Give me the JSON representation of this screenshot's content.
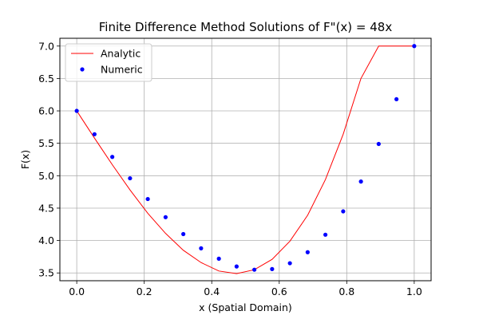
{
  "chart_data": {
    "type": "line",
    "title": "Finite Difference Method Solutions of F\"(x) = 48x",
    "xlabel": "x (Spatial Domain)",
    "ylabel": "F(x)",
    "xlim": [
      -0.05,
      1.05
    ],
    "ylim": [
      3.38,
      7.12
    ],
    "x_ticks": [
      0.0,
      0.2,
      0.4,
      0.6,
      0.8,
      1.0
    ],
    "x_tick_labels": [
      "0.0",
      "0.2",
      "0.4",
      "0.6",
      "0.8",
      "1.0"
    ],
    "y_ticks": [
      3.5,
      4.0,
      4.5,
      5.0,
      5.5,
      6.0,
      6.5,
      7.0
    ],
    "y_tick_labels": [
      "3.5",
      "4.0",
      "4.5",
      "5.0",
      "5.5",
      "6.0",
      "6.5",
      "7.0"
    ],
    "grid": true,
    "legend_position": "top-left",
    "series": [
      {
        "name": "Analytic",
        "style": "line",
        "color": "#ff0000",
        "x": [
          0.0,
          0.0526,
          0.1053,
          0.1579,
          0.2105,
          0.2632,
          0.3158,
          0.3684,
          0.4211,
          0.4737,
          0.5263,
          0.5789,
          0.6316,
          0.6842,
          0.7368,
          0.7895,
          0.8421,
          0.8947,
          0.9474,
          1.0
        ],
        "y": [
          6.0,
          5.58,
          5.17,
          4.78,
          4.42,
          4.11,
          3.85,
          3.66,
          3.53,
          3.49,
          3.55,
          3.71,
          3.99,
          4.39,
          4.94,
          5.64,
          6.5,
          7.0,
          7.0,
          7.0
        ]
      },
      {
        "name": "Numeric",
        "style": "scatter",
        "color": "#0000ff",
        "x": [
          0.0,
          0.0526,
          0.1053,
          0.1579,
          0.2105,
          0.2632,
          0.3158,
          0.3684,
          0.4211,
          0.4737,
          0.5263,
          0.5789,
          0.6316,
          0.6842,
          0.7368,
          0.7895,
          0.8421,
          0.8947,
          0.9474,
          1.0
        ],
        "y": [
          6.0,
          5.64,
          5.29,
          4.96,
          4.64,
          4.36,
          4.1,
          3.88,
          3.72,
          3.6,
          3.55,
          3.56,
          3.65,
          3.82,
          4.09,
          4.45,
          4.91,
          5.49,
          6.18,
          7.0
        ]
      }
    ]
  }
}
